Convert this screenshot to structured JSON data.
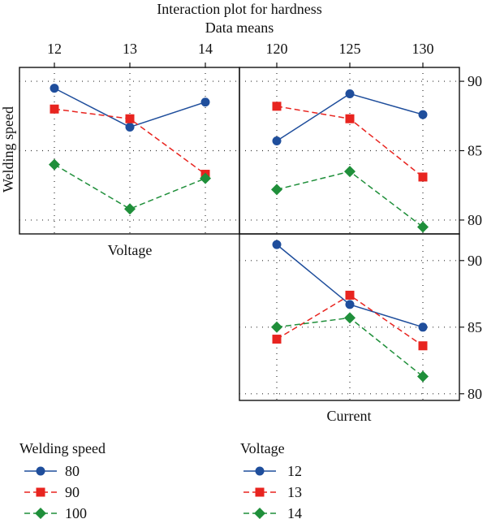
{
  "chart_data": {
    "type": "line",
    "title": "Interaction plot for hardness",
    "subtitle": "Data means",
    "ylabel": "Welding speed",
    "factors": {
      "welding_speed": {
        "label": "Welding speed",
        "levels": [
          "80",
          "90",
          "100"
        ]
      },
      "voltage": {
        "label": "Voltage",
        "levels": [
          "12",
          "13",
          "14"
        ]
      },
      "current": {
        "label": "Current",
        "levels": [
          "120",
          "125",
          "130"
        ]
      }
    },
    "colors": {
      "level1": "#1f4e9c",
      "level2": "#e8241f",
      "level3": "#1f8f3a"
    },
    "panels": [
      {
        "id": "voltage-by-speed",
        "x_factor": "Voltage",
        "trace_factor": "Welding speed",
        "categories": [
          "12",
          "13",
          "14"
        ],
        "ylim": [
          79,
          91
        ],
        "yticks": [
          80,
          85,
          90
        ],
        "series": [
          {
            "name": "80",
            "values": [
              89.5,
              86.7,
              88.5
            ],
            "marker": "circle",
            "dash": "solid"
          },
          {
            "name": "90",
            "values": [
              88.0,
              87.3,
              83.3
            ],
            "marker": "square",
            "dash": "dashed"
          },
          {
            "name": "100",
            "values": [
              84.0,
              80.8,
              83.0
            ],
            "marker": "diamond",
            "dash": "dashed"
          }
        ]
      },
      {
        "id": "current-by-speed",
        "x_factor": "Current",
        "trace_factor": "Welding speed",
        "categories": [
          "120",
          "125",
          "130"
        ],
        "ylim": [
          79,
          91
        ],
        "yticks": [
          80,
          85,
          90
        ],
        "series": [
          {
            "name": "80",
            "values": [
              85.7,
              89.1,
              87.6
            ],
            "marker": "circle",
            "dash": "solid"
          },
          {
            "name": "90",
            "values": [
              88.2,
              87.3,
              83.1
            ],
            "marker": "square",
            "dash": "dashed"
          },
          {
            "name": "100",
            "values": [
              82.2,
              83.5,
              79.5
            ],
            "marker": "diamond",
            "dash": "dashed"
          }
        ]
      },
      {
        "id": "current-by-voltage",
        "x_factor": "Current",
        "trace_factor": "Voltage",
        "categories": [
          "120",
          "125",
          "130"
        ],
        "ylim": [
          79.5,
          92
        ],
        "yticks": [
          80,
          85,
          90
        ],
        "series": [
          {
            "name": "12",
            "values": [
              91.2,
              86.7,
              85.0
            ],
            "marker": "circle",
            "dash": "solid"
          },
          {
            "name": "13",
            "values": [
              84.1,
              87.4,
              83.6
            ],
            "marker": "square",
            "dash": "dashed"
          },
          {
            "name": "14",
            "values": [
              85.0,
              85.7,
              81.3
            ],
            "marker": "diamond",
            "dash": "dashed"
          }
        ]
      }
    ],
    "legends": [
      {
        "title": "Welding speed",
        "items": [
          "80",
          "90",
          "100"
        ]
      },
      {
        "title": "Voltage",
        "items": [
          "12",
          "13",
          "14"
        ]
      }
    ]
  }
}
